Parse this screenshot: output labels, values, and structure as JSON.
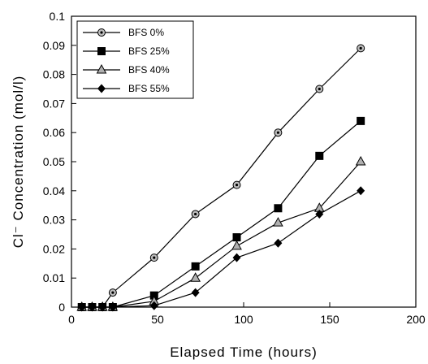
{
  "chart_data": {
    "type": "line",
    "xlabel": "Elapsed Time (hours)",
    "ylabel": "Cl⁻ Concentration (mol/l)",
    "xlim": [
      0,
      200
    ],
    "ylim": [
      0,
      0.1
    ],
    "x_ticks": [
      "0",
      "50",
      "100",
      "150",
      "200"
    ],
    "y_ticks": [
      "0",
      "0.01",
      "0.02",
      "0.03",
      "0.04",
      "0.05",
      "0.06",
      "0.07",
      "0.08",
      "0.09",
      "0.1"
    ],
    "grid": false,
    "legend_position": "top-left",
    "series": [
      {
        "name": "BFS 0%",
        "marker": "circle",
        "x": [
          6,
          12,
          18,
          24,
          48,
          72,
          96,
          120,
          144,
          168
        ],
        "y": [
          0,
          0,
          0,
          0.005,
          0.017,
          0.032,
          0.042,
          0.06,
          0.075,
          0.089
        ]
      },
      {
        "name": "BFS 25%",
        "marker": "square",
        "x": [
          6,
          12,
          18,
          24,
          48,
          72,
          96,
          120,
          144,
          168
        ],
        "y": [
          0,
          0,
          0,
          0,
          0.004,
          0.014,
          0.024,
          0.034,
          0.052,
          0.064
        ]
      },
      {
        "name": "BFS 40%",
        "marker": "triangle",
        "x": [
          6,
          12,
          18,
          24,
          48,
          72,
          96,
          120,
          144,
          168
        ],
        "y": [
          0,
          0,
          0,
          0,
          0.002,
          0.01,
          0.021,
          0.029,
          0.034,
          0.05
        ]
      },
      {
        "name": "BFS 55%",
        "marker": "diamond",
        "x": [
          6,
          12,
          18,
          24,
          48,
          72,
          96,
          120,
          144,
          168
        ],
        "y": [
          0,
          0,
          0,
          0,
          0.0005,
          0.005,
          0.017,
          0.022,
          0.032,
          0.04
        ]
      }
    ]
  }
}
